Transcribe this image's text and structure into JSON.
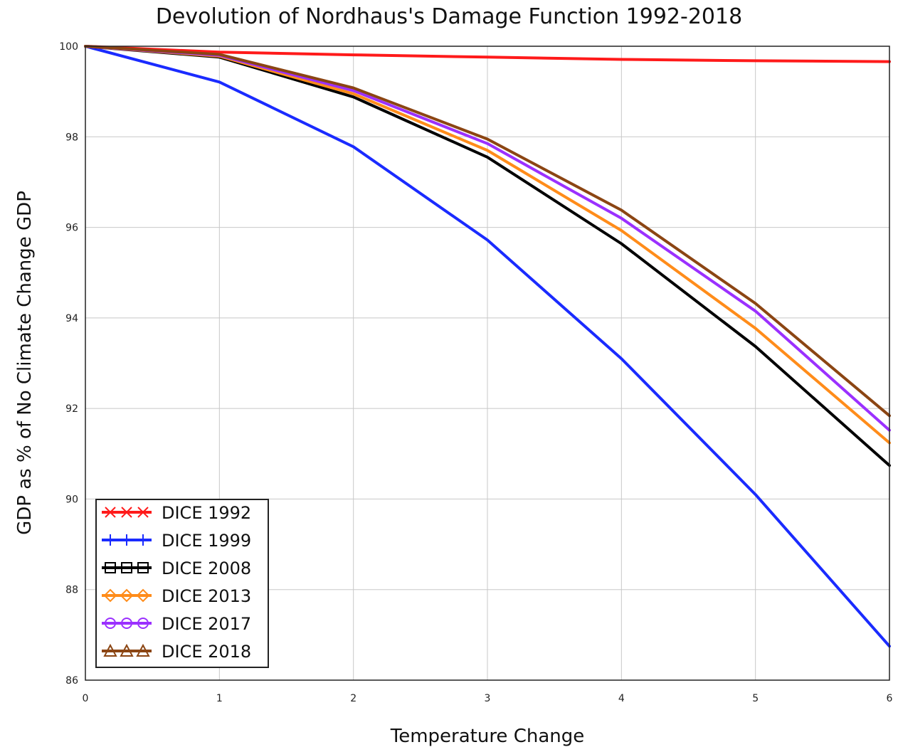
{
  "chart_data": {
    "type": "line",
    "title": "Devolution of Nordhaus's Damage Function 1992-2018",
    "xlabel": "Temperature Change",
    "ylabel": "GDP as % of No Climate Change GDP",
    "xlim": [
      0,
      6
    ],
    "ylim": [
      86,
      100
    ],
    "xticks": [
      "0",
      "1",
      "2",
      "3",
      "4",
      "5",
      "6"
    ],
    "yticks": [
      "86",
      "88",
      "90",
      "92",
      "94",
      "96",
      "98",
      "100"
    ],
    "grid": true,
    "legend_position": "bottom-left",
    "x": [
      0,
      1,
      2,
      3,
      4,
      5,
      6
    ],
    "series": [
      {
        "name": "DICE 1992",
        "color": "#ff1a1a",
        "marker": "x",
        "values": [
          100,
          99.87,
          99.81,
          99.76,
          99.71,
          99.68,
          99.66
        ]
      },
      {
        "name": "DICE 1999",
        "color": "#1a2bff",
        "marker": "+",
        "values": [
          100,
          99.21,
          97.78,
          95.72,
          93.1,
          90.1,
          86.75
        ]
      },
      {
        "name": "DICE 2008",
        "color": "#000000",
        "marker": "square",
        "values": [
          100,
          99.76,
          98.88,
          97.55,
          95.64,
          93.37,
          90.74
        ]
      },
      {
        "name": "DICE 2013",
        "color": "#ff8c1a",
        "marker": "diamond",
        "values": [
          100,
          99.78,
          98.95,
          97.7,
          95.93,
          93.77,
          91.24
        ]
      },
      {
        "name": "DICE 2017",
        "color": "#9b30ff",
        "marker": "circle",
        "values": [
          100,
          99.8,
          99.02,
          97.85,
          96.2,
          94.15,
          91.52
        ]
      },
      {
        "name": "DICE 2018",
        "color": "#8b4513",
        "marker": "triangle",
        "values": [
          100,
          99.82,
          99.08,
          97.95,
          96.38,
          94.32,
          91.84
        ]
      }
    ]
  }
}
